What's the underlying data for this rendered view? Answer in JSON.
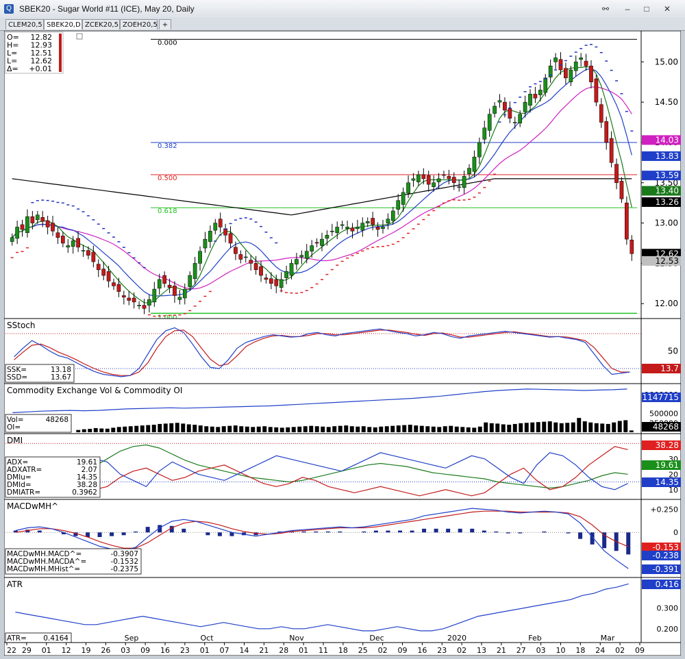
{
  "window": {
    "title": "SBEK20 - Sugar World #11 (ICE), May 20, Daily",
    "tabs": [
      "CLEM20,5",
      "SBEK20,D",
      "ZCEK20,5",
      "ZOEH20,5",
      "+"
    ],
    "active_tab": 1
  },
  "colors": {
    "price_up": "#1a8f1a",
    "price_down": "#c41a1a",
    "sma_fast": "#1a7a1a",
    "sma_mid": "#1f3fc8",
    "sma_slow": "#d020c0",
    "sma_200": "#000000",
    "sar_up": "#e02020",
    "sar_down": "#2030c0",
    "fib_blue": "#1f3fc8",
    "fib_red": "#e02020",
    "fib_green": "#22c022"
  },
  "ohlc_box": {
    "labels": [
      "O=",
      "H=",
      "L=",
      "L=",
      "Δ="
    ],
    "values": [
      "12.82",
      "12.93",
      "12.51",
      "12.62",
      "+0.01"
    ]
  },
  "chart_data": [
    {
      "type": "candlestick",
      "title": "SBEK20 Daily",
      "ylim": [
        11.9,
        15.3
      ],
      "yticks": [
        "15.00",
        "14.50",
        "14.00",
        "13.50",
        "13.00",
        "12.50",
        "12.00"
      ],
      "fib_levels": [
        {
          "label": "0.000",
          "value": 15.28,
          "color": "#000000"
        },
        {
          "label": "0.382",
          "value": 14.0,
          "color": "#1f3fc8"
        },
        {
          "label": "0.500",
          "value": 13.6,
          "color": "#e02020"
        },
        {
          "label": "0.618",
          "value": 13.19,
          "color": "#22c022"
        },
        {
          "label": "1.000",
          "value": 11.88,
          "color": "#22c022"
        }
      ],
      "right_labels": [
        {
          "text": "14.03",
          "value": 14.03,
          "bg": "#d020c0",
          "fg": "#ffffff"
        },
        {
          "text": "13.83",
          "value": 13.83,
          "bg": "#1f3fc8",
          "fg": "#ffffff"
        },
        {
          "text": "13.59",
          "value": 13.59,
          "bg": "#1f3fc8",
          "fg": "#ffffff"
        },
        {
          "text": "13.40",
          "value": 13.4,
          "bg": "#1a7a1a",
          "fg": "#ffffff"
        },
        {
          "text": "13.26",
          "value": 13.26,
          "bg": "#000000",
          "fg": "#ffffff"
        },
        {
          "text": "12.62",
          "value": 12.62,
          "bg": "#000000",
          "fg": "#ffffff"
        },
        {
          "text": "12.53",
          "value": 12.53,
          "bg": "#c0c0c0",
          "fg": "#000000"
        }
      ],
      "x_labels": [
        "22",
        "29",
        "01",
        "12",
        "19",
        "26",
        "03",
        "09",
        "16",
        "23",
        "01",
        "07",
        "14",
        "21",
        "28",
        "01",
        "11",
        "18",
        "25",
        "02",
        "09",
        "16",
        "23",
        "02",
        "13",
        "21",
        "27",
        "03",
        "10",
        "18",
        "24",
        "02",
        "09"
      ],
      "month_labels": [
        "Sep",
        "Oct",
        "Nov",
        "Dec",
        "2020",
        "Feb",
        "Mar"
      ],
      "close": [
        12.82,
        12.95,
        12.92,
        13.08,
        13.0,
        13.1,
        13.02,
        12.95,
        12.9,
        12.82,
        12.75,
        12.72,
        12.78,
        12.7,
        12.66,
        12.6,
        12.52,
        12.42,
        12.35,
        12.28,
        12.22,
        12.15,
        12.08,
        12.04,
        12.02,
        11.98,
        11.94,
        12.05,
        12.18,
        12.3,
        12.25,
        12.2,
        12.1,
        12.08,
        12.18,
        12.35,
        12.5,
        12.65,
        12.8,
        12.9,
        13.0,
        12.95,
        12.85,
        12.75,
        12.62,
        12.55,
        12.58,
        12.5,
        12.42,
        12.35,
        12.3,
        12.25,
        12.22,
        12.3,
        12.4,
        12.5,
        12.55,
        12.6,
        12.65,
        12.72,
        12.75,
        12.8,
        12.85,
        12.9,
        12.95,
        12.98,
        12.95,
        12.9,
        12.95,
        13.0,
        13.02,
        12.98,
        12.92,
        12.95,
        13.05,
        13.15,
        13.28,
        13.38,
        13.5,
        13.55,
        13.6,
        13.55,
        13.48,
        13.5,
        13.55,
        13.6,
        13.55,
        13.5,
        13.45,
        13.58,
        13.68,
        13.82,
        14.0,
        14.18,
        14.35,
        14.45,
        14.52,
        14.4,
        14.3,
        14.25,
        14.35,
        14.5,
        14.6,
        14.55,
        14.65,
        14.8,
        14.95,
        15.05,
        14.9,
        14.8,
        14.9,
        15.0,
        15.05,
        14.95,
        14.75,
        14.5,
        14.25,
        14.0,
        13.75,
        13.5,
        13.3,
        12.8,
        12.62
      ],
      "indicators": [
        "SMA fast",
        "SMA mid",
        "SMA slow",
        "SMA 200",
        "Parabolic SAR"
      ]
    },
    {
      "type": "line",
      "title": "SStoch",
      "ylim": [
        0,
        100
      ],
      "yticks": [
        "50"
      ],
      "legend": [
        {
          "label": "SSK=",
          "value": "13.18"
        },
        {
          "label": "SSD=",
          "value": "13.67"
        }
      ],
      "right_label": "13.7",
      "series": [
        {
          "name": "SSK",
          "values": [
            40,
            55,
            68,
            60,
            50,
            42,
            38,
            30,
            22,
            15,
            10,
            8,
            6,
            8,
            20,
            45,
            70,
            85,
            90,
            82,
            62,
            40,
            22,
            20,
            35,
            55,
            65,
            70,
            75,
            78,
            76,
            74,
            75,
            80,
            82,
            78,
            76,
            80,
            82,
            84,
            86,
            88,
            85,
            82,
            80,
            76,
            78,
            82,
            80,
            75,
            72,
            76,
            78,
            80,
            82,
            84,
            82,
            80,
            78,
            76,
            74,
            75,
            72,
            70,
            65,
            45,
            25,
            10,
            12,
            14
          ]
        },
        {
          "name": "SSD",
          "values": [
            35,
            48,
            60,
            62,
            56,
            48,
            42,
            35,
            27,
            20,
            14,
            10,
            8,
            8,
            14,
            30,
            55,
            75,
            85,
            86,
            75,
            55,
            36,
            25,
            28,
            42,
            58,
            66,
            72,
            76,
            77,
            75,
            75,
            77,
            80,
            80,
            78,
            78,
            80,
            82,
            84,
            86,
            86,
            84,
            82,
            79,
            77,
            80,
            81,
            78,
            74,
            74,
            76,
            78,
            80,
            82,
            83,
            81,
            79,
            77,
            75,
            75,
            74,
            71,
            68,
            56,
            38,
            20,
            14,
            14
          ]
        }
      ]
    },
    {
      "type": "bar",
      "title": "Commodity Exchange Vol & Commodity OI",
      "ylim": [
        0,
        1200000
      ],
      "yticks": [
        "1000000",
        "500000",
        "250000"
      ],
      "legend": [
        {
          "label": "Vol=",
          "value": "48268"
        },
        {
          "label": "OI=",
          "value": ""
        }
      ],
      "right_labels": [
        "1147715",
        "48268"
      ],
      "series": [
        {
          "name": "Vol",
          "values": [
            60000,
            80000,
            90000,
            110000,
            100000,
            95000,
            120000,
            140000,
            150000,
            160000,
            170000,
            180000,
            190000,
            200000,
            220000,
            230000,
            240000,
            250000,
            230000,
            210000,
            200000,
            180000,
            160000,
            150000,
            140000,
            160000,
            170000,
            180000,
            160000,
            150000,
            140000,
            150000,
            160000,
            140000,
            130000,
            120000,
            130000,
            140000,
            150000,
            160000,
            170000,
            160000,
            150000,
            140000,
            160000,
            170000,
            180000,
            160000,
            150000,
            160000,
            140000,
            130000,
            150000,
            160000,
            170000,
            180000,
            190000,
            200000,
            180000,
            170000,
            160000,
            150000,
            140000,
            160000,
            170000,
            150000,
            140000,
            130000,
            120000,
            150000,
            260000,
            240000,
            230000,
            210000,
            200000,
            220000,
            240000,
            250000,
            260000,
            270000,
            280000,
            290000,
            260000,
            240000,
            250000,
            260000,
            380000,
            290000,
            260000,
            240000,
            230000,
            220000,
            260000,
            300000,
            320000,
            48268
          ]
        },
        {
          "name": "OI",
          "values": [
            520000,
            540000,
            560000,
            570000,
            580000,
            570000,
            580000,
            600000,
            620000,
            630000,
            640000,
            650000,
            640000,
            650000,
            660000,
            670000,
            680000,
            690000,
            700000,
            720000,
            740000,
            760000,
            780000,
            800000,
            820000,
            840000,
            860000,
            880000,
            900000,
            930000,
            960000,
            1000000,
            1040000,
            1080000,
            1110000,
            1130000,
            1147715,
            1140000,
            1130000,
            1120000,
            1110000,
            1120000,
            1130000,
            1147715
          ]
        }
      ]
    },
    {
      "type": "line",
      "title": "DMI",
      "ylim": [
        5,
        45
      ],
      "yticks": [
        "30",
        "20",
        "10"
      ],
      "legend": [
        {
          "label": "ADX=",
          "value": "19.61"
        },
        {
          "label": "ADXATR=",
          "value": "2.07"
        },
        {
          "label": "DMIu=",
          "value": "14.35"
        },
        {
          "label": "DMId=",
          "value": "38.28"
        },
        {
          "label": "DMIATR=",
          "value": "0.3962"
        }
      ],
      "right_labels": [
        {
          "text": "38.28",
          "color": "#e02020"
        },
        {
          "text": "19.61",
          "color": "#1a8f1a"
        },
        {
          "text": "14.35",
          "color": "#1f3fc8"
        }
      ],
      "series": [
        {
          "name": "ADX",
          "values": [
            16,
            14,
            12,
            13,
            16,
            20,
            25,
            30,
            35,
            38,
            39,
            37,
            33,
            29,
            26,
            24,
            22,
            20,
            18,
            17,
            16,
            15,
            16,
            18,
            20,
            22,
            24,
            26,
            27,
            26,
            25,
            23,
            21,
            20,
            19,
            18,
            17,
            15,
            14,
            13,
            12,
            11,
            12,
            14,
            16,
            19,
            21,
            20
          ]
        },
        {
          "name": "DMIu",
          "values": [
            14,
            12,
            11,
            14,
            18,
            24,
            30,
            28,
            20,
            16,
            12,
            22,
            28,
            24,
            20,
            18,
            16,
            20,
            24,
            28,
            32,
            30,
            28,
            26,
            24,
            22,
            26,
            30,
            34,
            32,
            30,
            28,
            26,
            24,
            28,
            32,
            30,
            24,
            18,
            14,
            26,
            34,
            32,
            26,
            18,
            12,
            10,
            14
          ]
        },
        {
          "name": "DMId",
          "values": [
            20,
            22,
            24,
            20,
            16,
            12,
            10,
            12,
            18,
            22,
            24,
            20,
            16,
            18,
            22,
            24,
            26,
            22,
            18,
            14,
            12,
            14,
            18,
            16,
            12,
            10,
            8,
            10,
            12,
            10,
            8,
            6,
            8,
            10,
            8,
            6,
            8,
            14,
            20,
            24,
            16,
            10,
            12,
            18,
            26,
            32,
            38,
            36
          ]
        }
      ]
    },
    {
      "type": "bar",
      "title": "MACDwMH^",
      "ylim": [
        -0.45,
        0.32
      ],
      "yticks": [
        "+0.250",
        "0"
      ],
      "legend": [
        {
          "label": "MACDwMH.MACD^=",
          "value": "-0.3907"
        },
        {
          "label": "MACDwMH.MACDA^=",
          "value": "-0.1532"
        },
        {
          "label": "MACDwMH.MHist^=",
          "value": "-0.2375"
        }
      ],
      "right_labels": [
        {
          "text": "-0.153",
          "bg": "#e02020"
        },
        {
          "text": "-0.238",
          "bg": "#1f3fc8"
        },
        {
          "text": "-0.391",
          "bg": "#1f3fc8"
        }
      ],
      "series": [
        {
          "name": "MACD",
          "values": [
            0.02,
            0.05,
            0.06,
            0.04,
            0.0,
            -0.05,
            -0.1,
            -0.15,
            -0.18,
            -0.2,
            -0.16,
            -0.05,
            0.05,
            0.12,
            0.14,
            0.12,
            0.08,
            0.04,
            0.0,
            -0.02,
            -0.04,
            -0.02,
            0.0,
            0.02,
            0.03,
            0.04,
            0.05,
            0.06,
            0.05,
            0.06,
            0.08,
            0.1,
            0.12,
            0.14,
            0.18,
            0.2,
            0.22,
            0.24,
            0.26,
            0.25,
            0.24,
            0.22,
            0.21,
            0.22,
            0.23,
            0.22,
            0.2,
            0.1,
            -0.05,
            -0.2,
            -0.3,
            -0.391
          ]
        },
        {
          "name": "MACDA",
          "values": [
            0.0,
            0.02,
            0.04,
            0.04,
            0.02,
            -0.01,
            -0.05,
            -0.1,
            -0.14,
            -0.17,
            -0.17,
            -0.11,
            -0.03,
            0.05,
            0.1,
            0.12,
            0.11,
            0.08,
            0.04,
            0.01,
            -0.01,
            -0.02,
            -0.01,
            0.01,
            0.02,
            0.03,
            0.04,
            0.05,
            0.05,
            0.05,
            0.06,
            0.08,
            0.1,
            0.12,
            0.14,
            0.16,
            0.18,
            0.2,
            0.22,
            0.23,
            0.23,
            0.23,
            0.22,
            0.22,
            0.22,
            0.22,
            0.21,
            0.17,
            0.08,
            -0.03,
            -0.1,
            -0.153
          ]
        }
      ]
    },
    {
      "type": "line",
      "title": "ATR",
      "ylim": [
        0.15,
        0.43
      ],
      "yticks": [
        "0.300",
        "0.200"
      ],
      "legend": [
        {
          "label": "ATR=",
          "value": "0.4164"
        }
      ],
      "right_label": "0.416",
      "series": [
        {
          "name": "ATR",
          "values": [
            0.28,
            0.27,
            0.26,
            0.25,
            0.24,
            0.23,
            0.22,
            0.22,
            0.23,
            0.24,
            0.25,
            0.26,
            0.25,
            0.24,
            0.23,
            0.22,
            0.21,
            0.22,
            0.23,
            0.22,
            0.21,
            0.2,
            0.2,
            0.21,
            0.2,
            0.2,
            0.21,
            0.22,
            0.21,
            0.2,
            0.19,
            0.19,
            0.2,
            0.21,
            0.2,
            0.19,
            0.19,
            0.2,
            0.22,
            0.24,
            0.26,
            0.27,
            0.28,
            0.29,
            0.3,
            0.31,
            0.32,
            0.33,
            0.34,
            0.36,
            0.37,
            0.39,
            0.4,
            0.416
          ]
        }
      ]
    }
  ]
}
